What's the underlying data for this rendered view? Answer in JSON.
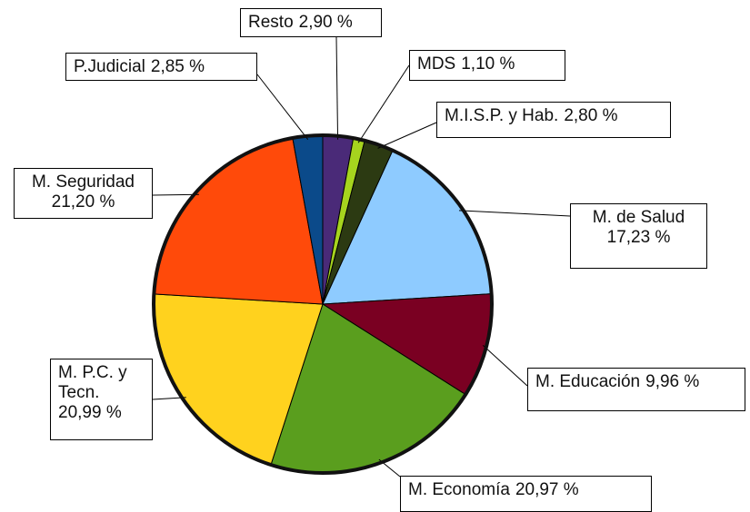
{
  "chart_data": {
    "type": "pie",
    "categories": [
      "Resto",
      "MDS",
      "M.I.S.P. y Hab.",
      "M. de Salud",
      "M. Educación",
      "M. Economía",
      "M. P.C. y Tecn.",
      "M. Seguridad",
      "P.Judicial"
    ],
    "values": [
      2.9,
      1.1,
      2.8,
      17.23,
      9.96,
      20.97,
      20.99,
      21.2,
      2.85
    ],
    "value_labels": [
      "2,90 %",
      "1,10 %",
      "2,80 %",
      "17,23 %",
      "9,96 %",
      "20,97 %",
      "20,99 %",
      "21,20 %",
      "2,85 %"
    ],
    "colors": [
      "#4a2a78",
      "#a6d41e",
      "#2c3a12",
      "#8ecbff",
      "#7a0022",
      "#5a9e1e",
      "#ffd21e",
      "#ff4a0a",
      "#0b4a8a"
    ]
  }
}
